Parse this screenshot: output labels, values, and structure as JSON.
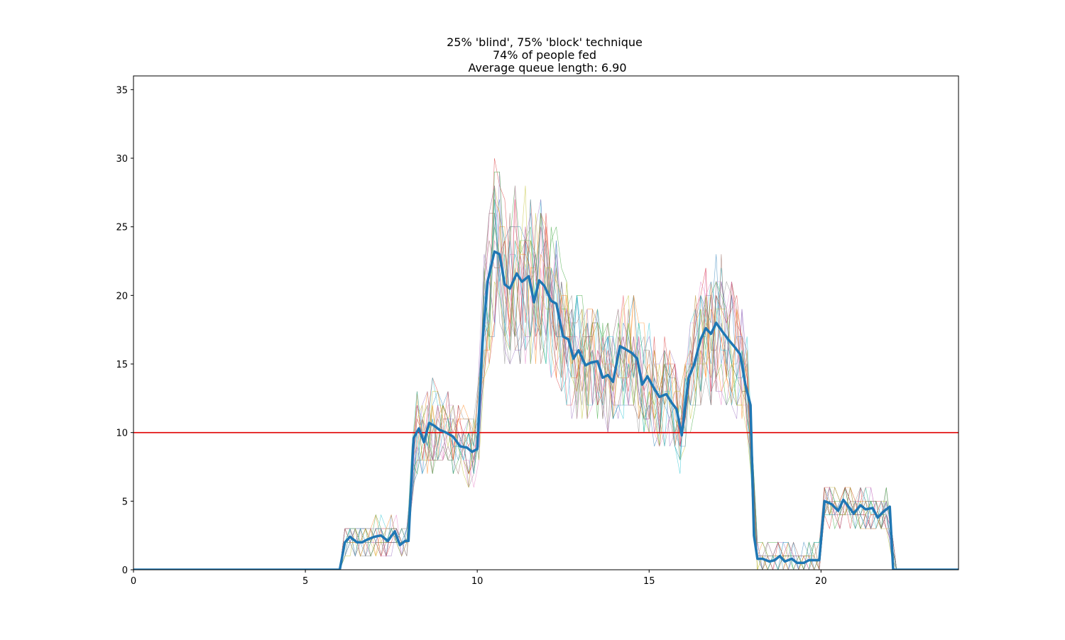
{
  "chart_data": {
    "type": "line",
    "title_lines": [
      "25% 'blind', 75% 'block' technique",
      "74% of people fed",
      "Average queue length: 6.90"
    ],
    "xlabel": "",
    "ylabel": "",
    "xlim": [
      0,
      24
    ],
    "ylim": [
      0,
      36
    ],
    "xticks": [
      0,
      5,
      10,
      15,
      20
    ],
    "yticks": [
      0,
      5,
      10,
      15,
      20,
      25,
      30,
      35
    ],
    "grid": false,
    "legend": "none",
    "threshold": {
      "y": 10,
      "color": "#e00000"
    },
    "mean_series": {
      "color": "#1f77b4",
      "x": [
        0,
        5.95,
        6.0,
        6.15,
        6.3,
        6.5,
        6.65,
        6.8,
        7.0,
        7.2,
        7.4,
        7.6,
        7.75,
        7.9,
        8.0,
        8.15,
        8.3,
        8.45,
        8.6,
        8.75,
        8.9,
        9.1,
        9.3,
        9.5,
        9.7,
        9.85,
        10.0,
        10.15,
        10.3,
        10.5,
        10.65,
        10.8,
        10.95,
        11.15,
        11.3,
        11.5,
        11.65,
        11.8,
        11.95,
        12.15,
        12.3,
        12.5,
        12.65,
        12.8,
        12.95,
        13.15,
        13.3,
        13.5,
        13.65,
        13.8,
        13.95,
        14.15,
        14.3,
        14.5,
        14.65,
        14.8,
        14.95,
        15.15,
        15.3,
        15.5,
        15.65,
        15.8,
        15.95,
        16.15,
        16.3,
        16.5,
        16.65,
        16.8,
        16.95,
        17.15,
        17.3,
        17.5,
        17.65,
        17.8,
        17.95,
        18.05,
        18.15,
        18.3,
        18.5,
        18.65,
        18.8,
        18.95,
        19.15,
        19.3,
        19.5,
        19.65,
        19.8,
        19.95,
        20.1,
        20.3,
        20.5,
        20.65,
        20.8,
        20.95,
        21.15,
        21.3,
        21.5,
        21.65,
        21.8,
        21.95,
        22.0,
        22.1,
        24.0
      ],
      "y": [
        0,
        0,
        0,
        2.0,
        2.4,
        2.0,
        2.0,
        2.2,
        2.4,
        2.5,
        2.1,
        2.8,
        1.8,
        2.1,
        2.1,
        9.6,
        10.3,
        9.3,
        10.7,
        10.5,
        10.2,
        10.0,
        9.7,
        9.0,
        8.9,
        8.6,
        8.8,
        16.5,
        21.0,
        23.2,
        23.0,
        20.8,
        20.5,
        21.6,
        21.0,
        21.4,
        19.5,
        21.1,
        20.7,
        19.6,
        19.4,
        17.0,
        16.8,
        15.4,
        16.0,
        14.9,
        15.1,
        15.2,
        14.0,
        14.2,
        13.7,
        16.3,
        16.1,
        15.8,
        15.4,
        13.5,
        14.1,
        13.2,
        12.6,
        12.8,
        12.2,
        11.7,
        9.8,
        14.0,
        14.9,
        16.8,
        17.6,
        17.2,
        18.0,
        17.3,
        16.8,
        16.2,
        15.7,
        13.5,
        12.0,
        2.5,
        0.8,
        0.8,
        0.6,
        0.7,
        1.0,
        0.6,
        0.8,
        0.5,
        0.5,
        0.7,
        0.7,
        0.7,
        5.0,
        4.8,
        4.3,
        5.1,
        4.6,
        4.1,
        4.7,
        4.4,
        4.5,
        3.8,
        4.2,
        4.5,
        4.6,
        0,
        0
      ]
    }
  }
}
